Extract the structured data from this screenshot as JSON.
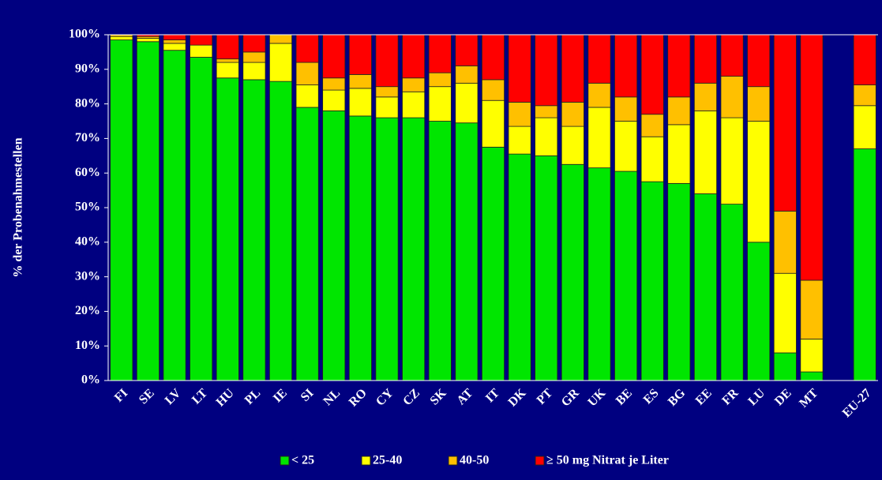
{
  "chart_data": {
    "type": "stacked_bar",
    "y_label": "% der Probenahmestellen",
    "categories": [
      "FI",
      "SE",
      "LV",
      "LT",
      "HU",
      "PL",
      "IE",
      "SI",
      "NL",
      "RO",
      "CY",
      "CZ",
      "SK",
      "AT",
      "IT",
      "DK",
      "PT",
      "GR",
      "UK",
      "BE",
      "ES",
      "BG",
      "EE",
      "FR",
      "LU",
      "DE",
      "MT",
      null,
      "EU-27"
    ],
    "series": [
      {
        "name": "< 25",
        "color": "#00e600",
        "values": [
          98.5,
          98,
          95.5,
          93.5,
          87.5,
          87,
          86.5,
          79,
          78,
          76.5,
          76,
          76,
          75,
          74.5,
          67.5,
          65.5,
          65,
          62.5,
          61.5,
          60.5,
          57.5,
          57,
          54,
          51,
          40,
          8,
          2.5,
          null,
          67
        ]
      },
      {
        "name": "25-40",
        "color": "#ffff00",
        "values": [
          1,
          1,
          2,
          3.5,
          4.5,
          5,
          11,
          6.5,
          6,
          8,
          6,
          7.5,
          10,
          11.5,
          13.5,
          8,
          11,
          11,
          17.5,
          14.5,
          13,
          17,
          24,
          25,
          35,
          23,
          9.5,
          null,
          12.5
        ]
      },
      {
        "name": "40-50",
        "color": "#ffc000",
        "values": [
          0.5,
          0.5,
          1,
          0,
          1,
          3,
          2.5,
          6.5,
          3.5,
          4,
          3,
          4,
          4,
          5,
          6,
          7,
          3.5,
          7,
          7,
          7,
          6.5,
          8,
          8,
          12,
          10,
          18,
          17,
          null,
          6
        ]
      },
      {
        "name": "≥ 50 mg Nitrat je Liter",
        "color": "#ff0000",
        "values": [
          0,
          0.5,
          1.5,
          3,
          7,
          5,
          0,
          8,
          12.5,
          11.5,
          15,
          12.5,
          11,
          9,
          13,
          19.5,
          20.5,
          19.5,
          14,
          18,
          23,
          18,
          14,
          12,
          15,
          51,
          71,
          null,
          14.5
        ]
      }
    ],
    "ylim": [
      0,
      100
    ],
    "yticks": [
      {
        "value": 0,
        "label": "0%"
      },
      {
        "value": 10,
        "label": "10%"
      },
      {
        "value": 20,
        "label": "20%"
      },
      {
        "value": 30,
        "label": "30%"
      },
      {
        "value": 40,
        "label": "40%"
      },
      {
        "value": 50,
        "label": "50%"
      },
      {
        "value": 60,
        "label": "60%"
      },
      {
        "value": 70,
        "label": "70%"
      },
      {
        "value": 80,
        "label": "80%"
      },
      {
        "value": 90,
        "label": "90%"
      },
      {
        "value": 100,
        "label": "100%"
      }
    ]
  }
}
